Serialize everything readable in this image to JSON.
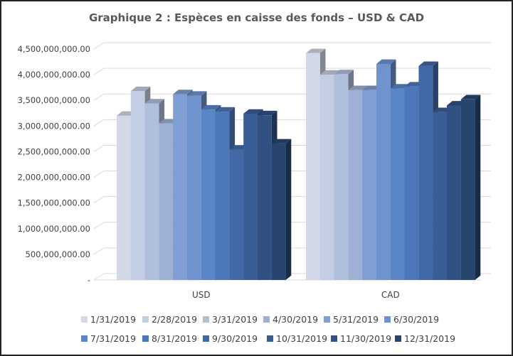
{
  "chart_data": {
    "type": "bar",
    "title": "Graphique 2 : Espèces en caisse des fonds – USD & CAD",
    "categories": [
      "USD",
      "CAD"
    ],
    "ylim": [
      0,
      4500000000
    ],
    "yticks": [
      0,
      500000000,
      1000000000,
      1500000000,
      2000000000,
      2500000000,
      3000000000,
      3500000000,
      4000000000,
      4500000000
    ],
    "ytick_labels": [
      "-",
      "500,000,000.00",
      "1,000,000,000.00",
      "1,500,000,000.00",
      "2,000,000,000.00",
      "2,500,000,000.00",
      "3,000,000,000.00",
      "3,500,000,000.00",
      "4,000,000,000.00",
      "4,500,000,000.00"
    ],
    "grid": true,
    "legend_position": "bottom",
    "series": [
      {
        "name": "1/31/2019",
        "color": "#d2d8e8",
        "values": [
          3200000000,
          4420000000
        ]
      },
      {
        "name": "2/28/2019",
        "color": "#c3cde3",
        "values": [
          3680000000,
          4000000000
        ]
      },
      {
        "name": "3/31/2019",
        "color": "#b0bfdc",
        "values": [
          3440000000,
          4010000000
        ]
      },
      {
        "name": "4/30/2019",
        "color": "#9eb1d5",
        "values": [
          3050000000,
          3700000000
        ]
      },
      {
        "name": "5/31/2019",
        "color": "#7f9fd4",
        "values": [
          3620000000,
          3700000000
        ]
      },
      {
        "name": "6/30/2019",
        "color": "#6e93cf",
        "values": [
          3590000000,
          4210000000
        ]
      },
      {
        "name": "7/31/2019",
        "color": "#5a85c8",
        "values": [
          3320000000,
          3730000000
        ]
      },
      {
        "name": "8/31/2019",
        "color": "#4c77ba",
        "values": [
          3280000000,
          3770000000
        ]
      },
      {
        "name": "9/30/2019",
        "color": "#4169a8",
        "values": [
          2540000000,
          4170000000
        ]
      },
      {
        "name": "10/31/2019",
        "color": "#395d95",
        "values": [
          3240000000,
          3270000000
        ]
      },
      {
        "name": "11/30/2019",
        "color": "#315183",
        "values": [
          3210000000,
          3400000000
        ]
      },
      {
        "name": "12/31/2019",
        "color": "#284570",
        "values": [
          2660000000,
          3520000000
        ]
      }
    ]
  }
}
